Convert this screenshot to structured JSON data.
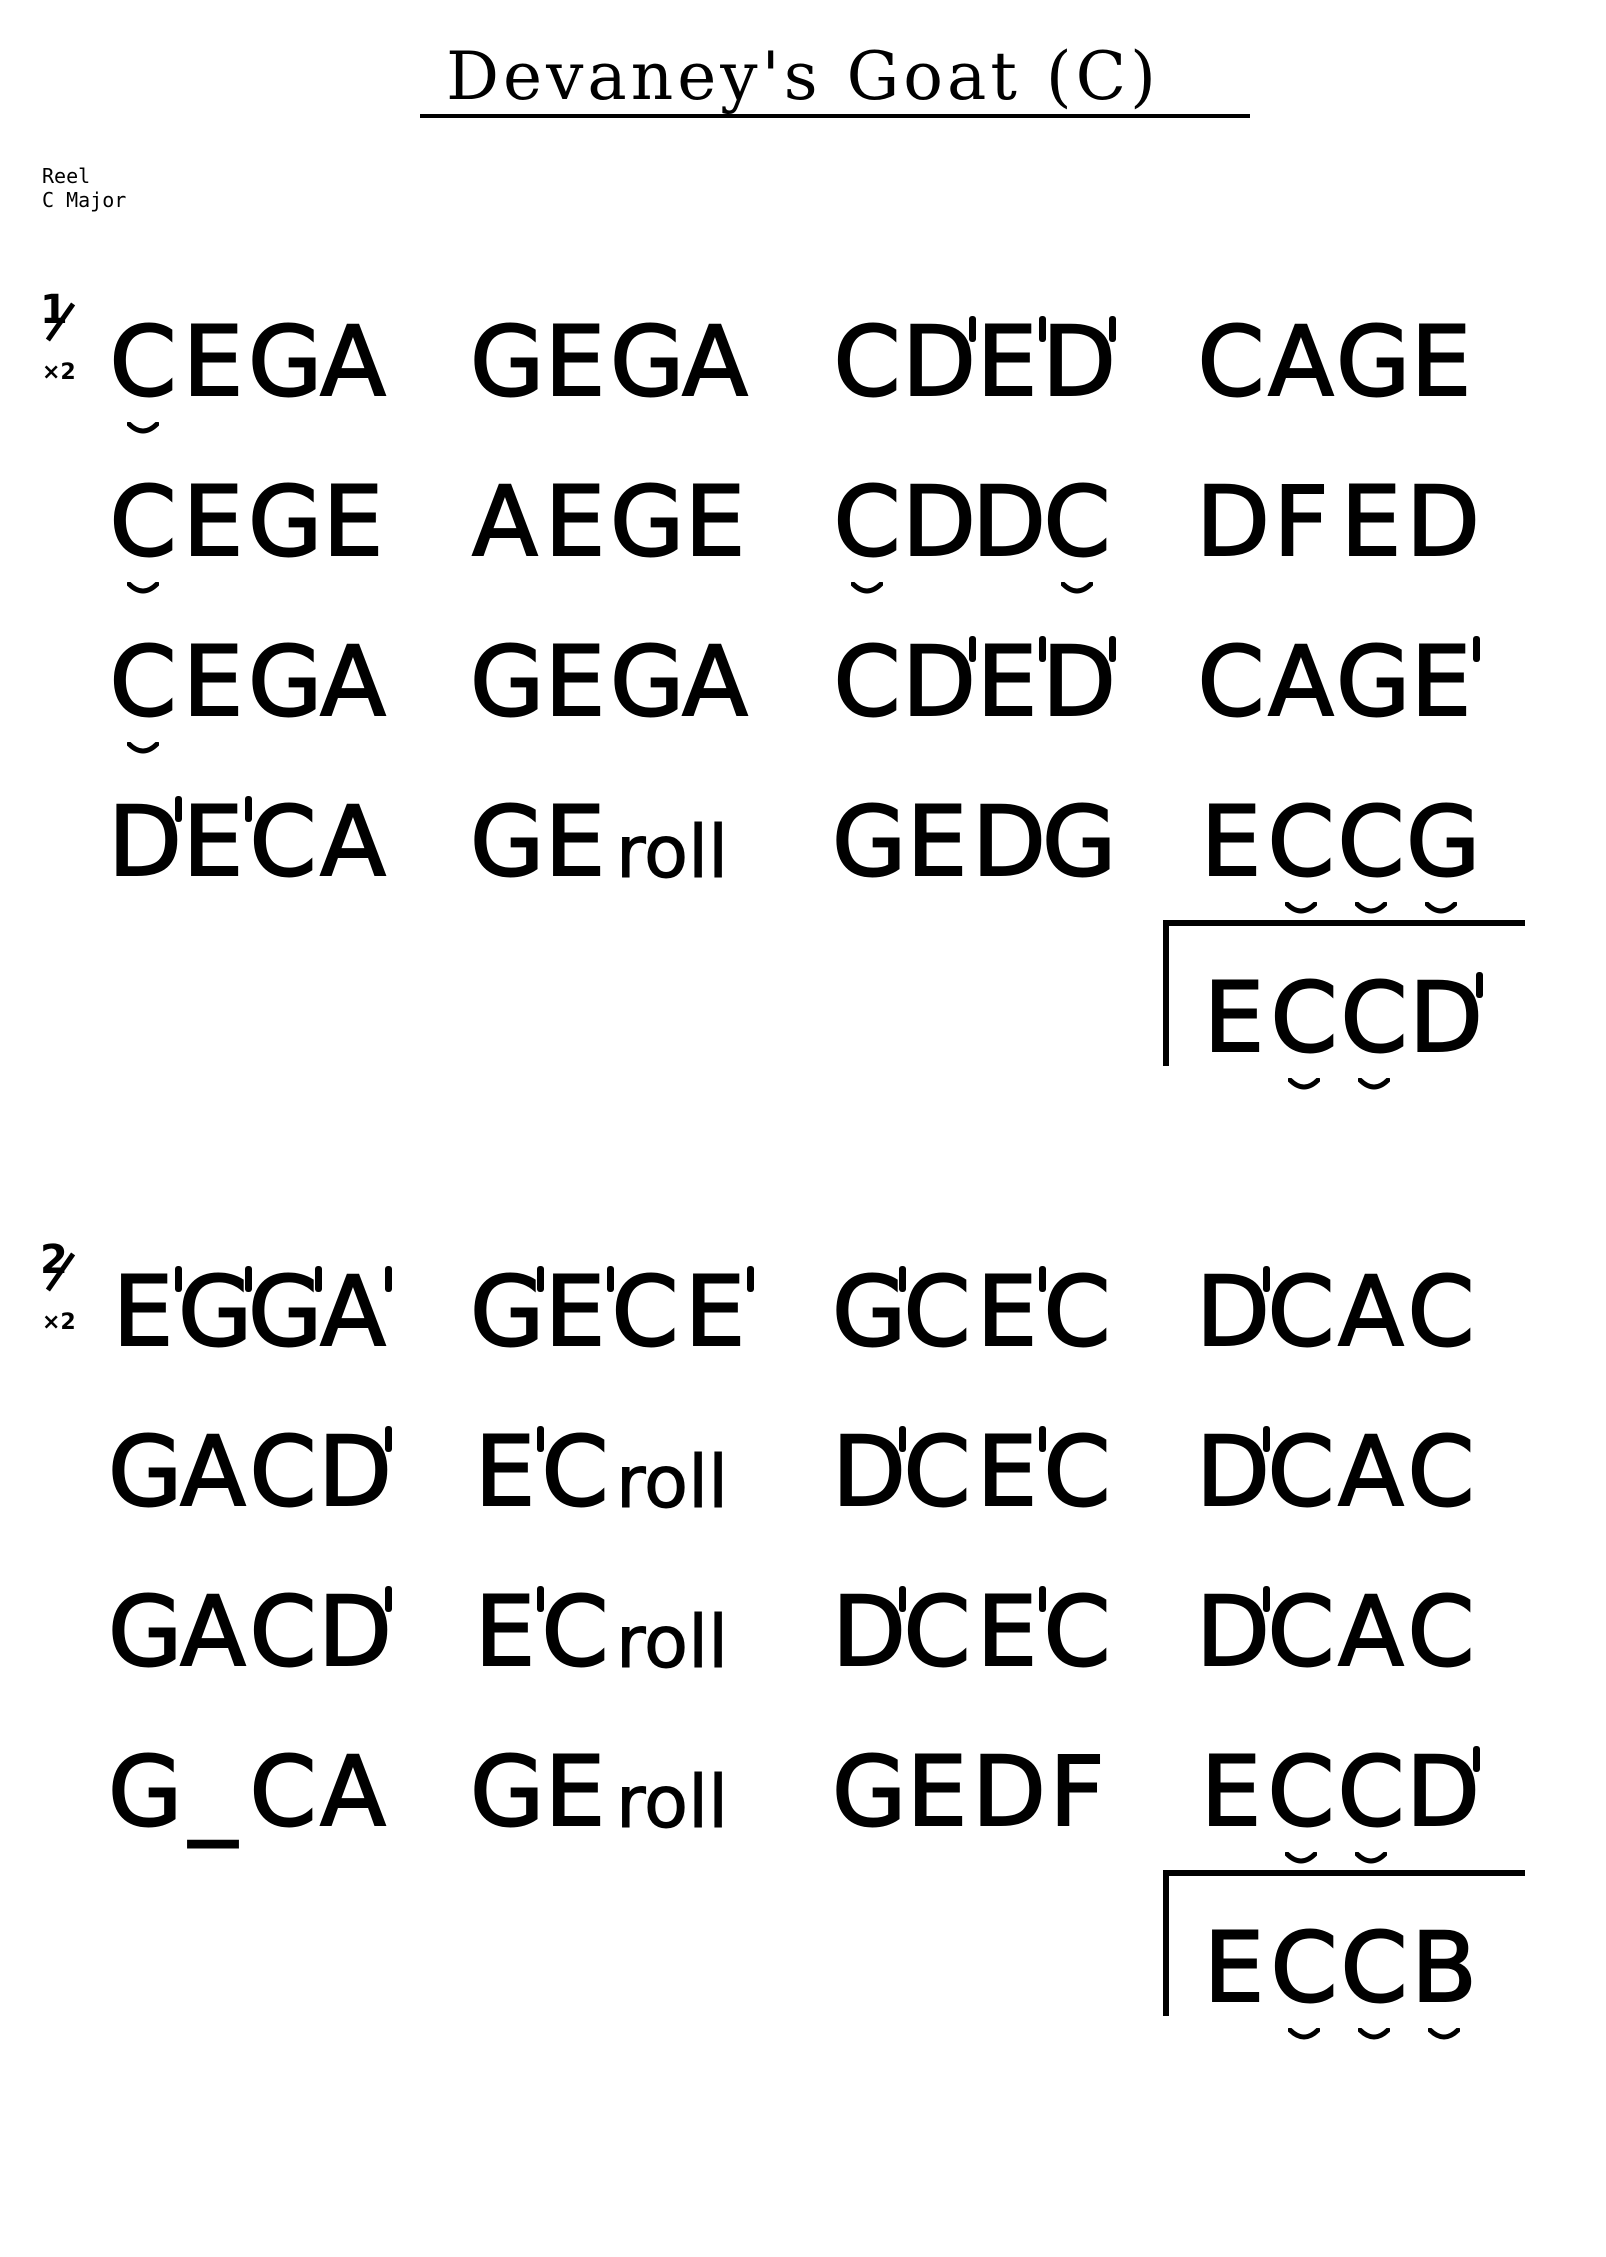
{
  "title": "Devaney's Goat (C)",
  "meta": {
    "type": "Reel",
    "key": "C Major"
  },
  "parts": [
    {
      "number": "1",
      "repeat": "×2",
      "lines": [
        [
          [
            "C_",
            "E",
            "G",
            "A"
          ],
          [
            "G",
            "E",
            "G",
            "A"
          ],
          [
            "C",
            "D'",
            "E'",
            "D'"
          ],
          [
            "C",
            "A",
            "G",
            "E"
          ]
        ],
        [
          [
            "C_",
            "E",
            "G",
            "E"
          ],
          [
            "A",
            "E",
            "G",
            "E"
          ],
          [
            "C_",
            "D",
            "D",
            "C_"
          ],
          [
            "D",
            "F",
            "E",
            "D"
          ]
        ],
        [
          [
            "C_",
            "E",
            "G",
            "A"
          ],
          [
            "G",
            "E",
            "G",
            "A"
          ],
          [
            "C",
            "D'",
            "E'",
            "D'"
          ],
          [
            "C",
            "A",
            "G",
            "E'"
          ]
        ],
        [
          [
            "D'",
            "E'",
            "C",
            "A"
          ],
          [
            "G",
            "E",
            "roll"
          ],
          [
            "G",
            "E",
            "D",
            "G"
          ],
          [
            "E",
            "C_",
            "C_",
            "G_"
          ]
        ]
      ],
      "ending": [
        "E",
        "C_",
        "C_",
        "D'"
      ]
    },
    {
      "number": "2",
      "repeat": "×2",
      "lines": [
        [
          [
            "E'",
            "G'",
            "G'",
            "A'"
          ],
          [
            "G'",
            "E'",
            "C",
            "E'"
          ],
          [
            "G'",
            "C",
            "E'",
            "C"
          ],
          [
            "D'",
            "C",
            "A",
            "C"
          ]
        ],
        [
          [
            "G",
            "A",
            "C",
            "D'"
          ],
          [
            "E'",
            "C",
            "roll"
          ],
          [
            "D'",
            "C",
            "E'",
            "C"
          ],
          [
            "D'",
            "C",
            "A",
            "C"
          ]
        ],
        [
          [
            "G",
            "A",
            "C",
            "D'"
          ],
          [
            "E'",
            "C",
            "roll"
          ],
          [
            "D'",
            "C",
            "E'",
            "C"
          ],
          [
            "D'",
            "C",
            "A",
            "C"
          ]
        ],
        [
          [
            "G",
            "_",
            "C",
            "A"
          ],
          [
            "G",
            "E",
            "roll"
          ],
          [
            "G",
            "E",
            "D",
            "F"
          ],
          [
            "E",
            "C_",
            "C_",
            "D'"
          ]
        ]
      ],
      "ending": [
        "E",
        "C_",
        "C_",
        "B_"
      ]
    }
  ]
}
